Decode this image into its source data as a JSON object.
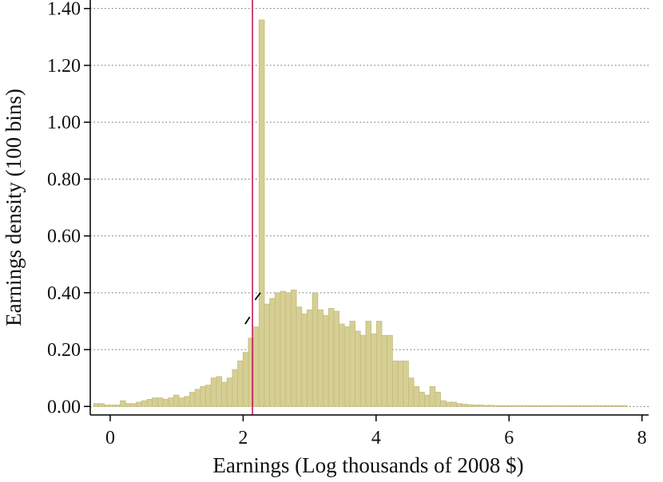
{
  "chart_data": {
    "type": "bar",
    "title": "",
    "xlabel": "Earnings (Log thousands of 2008 $)",
    "ylabel": "Earnings density (100 bins)",
    "xlim": [
      -0.3,
      8.1
    ],
    "ylim": [
      -0.03,
      1.43
    ],
    "x_ticks": [
      {
        "value": 0,
        "label": "0"
      },
      {
        "value": 2,
        "label": "2"
      },
      {
        "value": 4,
        "label": "4"
      },
      {
        "value": 6,
        "label": "6"
      },
      {
        "value": 8,
        "label": "8"
      }
    ],
    "y_ticks": [
      {
        "value": 0.0,
        "label": "0.00"
      },
      {
        "value": 0.2,
        "label": "0.20"
      },
      {
        "value": 0.4,
        "label": "0.40"
      },
      {
        "value": 0.6,
        "label": "0.60"
      },
      {
        "value": 0.8,
        "label": "0.80"
      },
      {
        "value": 1.0,
        "label": "1.00"
      },
      {
        "value": 1.2,
        "label": "1.20"
      },
      {
        "value": 1.4,
        "label": "1.40"
      }
    ],
    "grid": "horizontal dotted",
    "bin_start": -0.25,
    "bin_width": 0.0803,
    "bar_color": "#d6cf94",
    "bar_edge_color": "#c4bc78",
    "densities": [
      0.01,
      0.01,
      0.005,
      0.005,
      0.005,
      0.02,
      0.01,
      0.01,
      0.015,
      0.02,
      0.025,
      0.03,
      0.03,
      0.025,
      0.03,
      0.04,
      0.03,
      0.035,
      0.05,
      0.06,
      0.07,
      0.075,
      0.1,
      0.105,
      0.085,
      0.1,
      0.13,
      0.16,
      0.19,
      0.24,
      0.28,
      1.36,
      0.36,
      0.38,
      0.4,
      0.405,
      0.4,
      0.41,
      0.35,
      0.325,
      0.34,
      0.4,
      0.34,
      0.32,
      0.345,
      0.335,
      0.29,
      0.28,
      0.3,
      0.265,
      0.25,
      0.3,
      0.255,
      0.3,
      0.25,
      0.25,
      0.16,
      0.16,
      0.16,
      0.1,
      0.07,
      0.05,
      0.04,
      0.07,
      0.05,
      0.02,
      0.015,
      0.015,
      0.01,
      0.008,
      0.006,
      0.005,
      0.005,
      0.004,
      0.004,
      0.003,
      0.003,
      0.003,
      0.003,
      0.003,
      0.003,
      0.003,
      0.003,
      0.003,
      0.003,
      0.003,
      0.003,
      0.003,
      0.003,
      0.003,
      0.003,
      0.003,
      0.003,
      0.003,
      0.003,
      0.003,
      0.003,
      0.003,
      0.003,
      0.003
    ],
    "reference_line": {
      "x": 2.14,
      "color": "#c2185b"
    },
    "fit_lines": [
      {
        "x": [
          2.03,
          2.1
        ],
        "y": [
          0.29,
          0.315
        ]
      },
      {
        "x": [
          2.18,
          2.26
        ],
        "y": [
          0.375,
          0.4
        ]
      }
    ]
  }
}
